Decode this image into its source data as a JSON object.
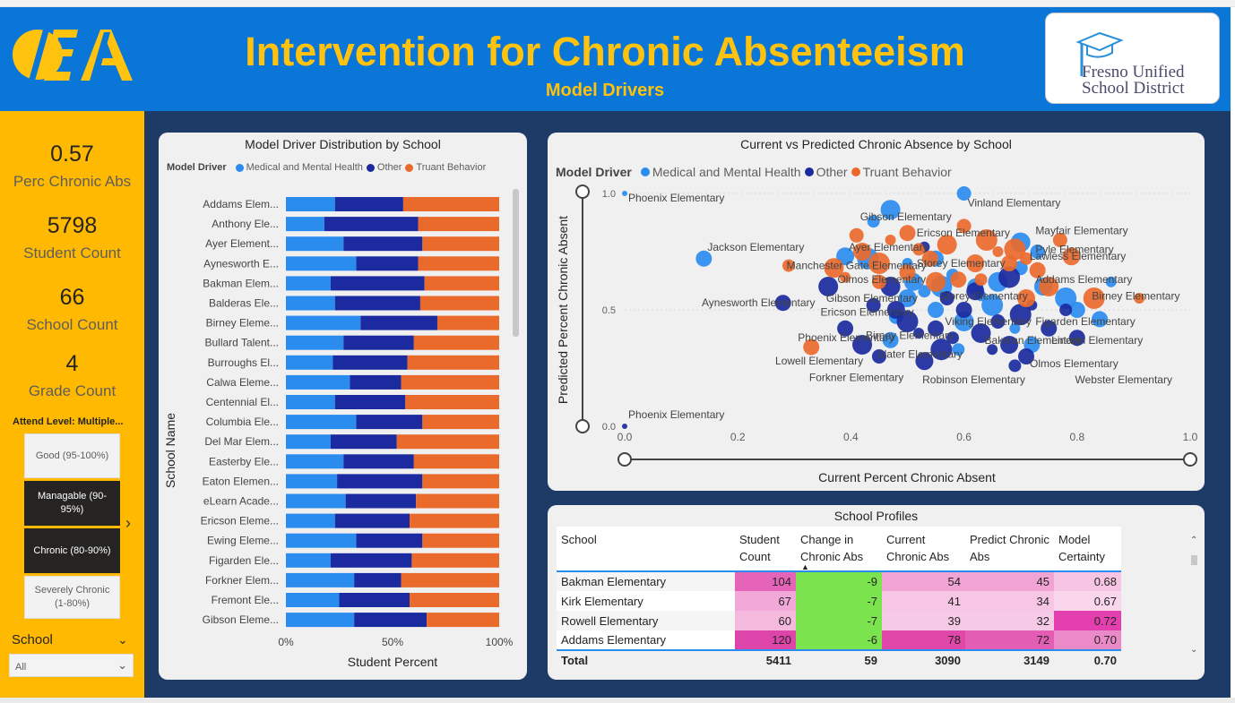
{
  "header": {
    "title": "Intervention for Chronic Absenteeism",
    "subtitle": "Model Drivers",
    "logo_text": "OEA",
    "district_logo": {
      "line1": "Fresno Unified",
      "line2": "School District"
    }
  },
  "colors": {
    "header_bg": "#0a76d8",
    "title": "#ffc20e",
    "sidebar_bg": "#ffb900",
    "canvas_bg": "#1e3a66",
    "medical": "#2b8cf0",
    "other": "#1b2a9e",
    "truant": "#ea6a2c"
  },
  "kpis": [
    {
      "value": "0.57",
      "label": "Perc Chronic Abs"
    },
    {
      "value": "5798",
      "label": "Student Count"
    },
    {
      "value": "66",
      "label": "School Count"
    },
    {
      "value": "4",
      "label": "Grade Count"
    }
  ],
  "attend_slicer": {
    "title": "Attend Level: Multiple...",
    "options": [
      {
        "label": "Good (95-100%)",
        "selected": false
      },
      {
        "label": "Managable (90-95%)",
        "selected": true
      },
      {
        "label": "Chronic (80-90%)",
        "selected": true
      },
      {
        "label": "Severely Chronic (1-80%)",
        "selected": false
      }
    ]
  },
  "school_slicer": {
    "label": "School",
    "value": "All"
  },
  "chart_data": [
    {
      "type": "bar",
      "stacked": "100%",
      "orientation": "horizontal",
      "title": "Model Driver Distribution by School",
      "legend_title": "Model Driver",
      "xlabel": "Student Percent",
      "ylabel": "School Name",
      "xticks": [
        "0%",
        "50%",
        "100%"
      ],
      "categories": [
        "Addams Elem...",
        "Anthony Ele...",
        "Ayer Element...",
        "Aynesworth E...",
        "Bakman Elem...",
        "Balderas Ele...",
        "Birney Eleme...",
        "Bullard Talent...",
        "Burroughs El...",
        "Calwa Eleme...",
        "Centennial El...",
        "Columbia Ele...",
        "Del Mar Elem...",
        "Easterby Ele...",
        "Eaton Elemen...",
        "eLearn Acade...",
        "Ericson Eleme...",
        "Ewing Eleme...",
        "Figarden Ele...",
        "Forkner Elem...",
        "Fremont Ele...",
        "Gibson Eleme..."
      ],
      "series": [
        {
          "name": "Medical and Mental Health",
          "values": [
            0.23,
            0.18,
            0.27,
            0.33,
            0.21,
            0.23,
            0.35,
            0.27,
            0.22,
            0.3,
            0.23,
            0.33,
            0.21,
            0.27,
            0.24,
            0.28,
            0.23,
            0.33,
            0.21,
            0.32,
            0.25,
            0.32
          ]
        },
        {
          "name": "Other",
          "values": [
            0.32,
            0.44,
            0.37,
            0.29,
            0.44,
            0.4,
            0.36,
            0.33,
            0.35,
            0.24,
            0.33,
            0.31,
            0.31,
            0.33,
            0.4,
            0.33,
            0.35,
            0.31,
            0.38,
            0.22,
            0.33,
            0.34
          ]
        },
        {
          "name": "Truant Behavior",
          "values": [
            0.45,
            0.38,
            0.36,
            0.38,
            0.35,
            0.37,
            0.29,
            0.4,
            0.43,
            0.46,
            0.44,
            0.36,
            0.48,
            0.4,
            0.36,
            0.39,
            0.42,
            0.36,
            0.41,
            0.46,
            0.42,
            0.34
          ]
        }
      ]
    },
    {
      "type": "scatter",
      "title": "Current vs Predicted Chronic Absence by School",
      "legend_title": "Model Driver",
      "xlabel": "Current Percent Chronic Absent",
      "ylabel": "Predicted Percent Chronic Absent",
      "xlim": [
        0,
        1
      ],
      "ylim": [
        0,
        1
      ],
      "xticks": [
        "0.0",
        "0.2",
        "0.4",
        "0.6",
        "0.8",
        "1.0"
      ],
      "yticks": [
        "1.0",
        "0.5",
        "0.0"
      ],
      "labels": [
        {
          "text": "Phoenix Elementary",
          "x": 0.0,
          "y": 0.98
        },
        {
          "text": "Vinland Elementary",
          "x": 0.6,
          "y": 0.96
        },
        {
          "text": "Gibson Elementary",
          "x": 0.41,
          "y": 0.9
        },
        {
          "text": "Ericson Elementary",
          "x": 0.51,
          "y": 0.83
        },
        {
          "text": "Mayfair Elementary",
          "x": 0.72,
          "y": 0.84
        },
        {
          "text": "Jackson Elementary",
          "x": 0.14,
          "y": 0.77
        },
        {
          "text": "Ayer Elementary",
          "x": 0.39,
          "y": 0.77
        },
        {
          "text": "Pyle Elementary",
          "x": 0.72,
          "y": 0.76
        },
        {
          "text": "Lawless Elementary",
          "x": 0.88,
          "y": 0.73
        },
        {
          "text": "Manchester Gate Elementary",
          "x": 0.28,
          "y": 0.69
        },
        {
          "text": "Storey Elementary",
          "x": 0.51,
          "y": 0.7
        },
        {
          "text": "Olmos Elementary",
          "x": 0.37,
          "y": 0.63
        },
        {
          "text": "Addams Elementary",
          "x": 0.72,
          "y": 0.63
        },
        {
          "text": "Gibson Elementary",
          "x": 0.35,
          "y": 0.55
        },
        {
          "text": "Storey Elementary",
          "x": 0.55,
          "y": 0.56
        },
        {
          "text": "Birney Elementary",
          "x": 0.82,
          "y": 0.56
        },
        {
          "text": "Aynesworth Elementary",
          "x": 0.13,
          "y": 0.53
        },
        {
          "text": "Ericson Elementary",
          "x": 0.34,
          "y": 0.49
        },
        {
          "text": "Viking Elementary",
          "x": 0.56,
          "y": 0.45
        },
        {
          "text": "Figarden Elementary",
          "x": 0.72,
          "y": 0.45
        },
        {
          "text": "Phoenix Elementary",
          "x": 0.3,
          "y": 0.38
        },
        {
          "text": "Birney Elementary",
          "x": 0.42,
          "y": 0.39
        },
        {
          "text": "Bakman Elementary",
          "x": 0.63,
          "y": 0.37
        },
        {
          "text": "Lincoln Elementary",
          "x": 0.91,
          "y": 0.37
        },
        {
          "text": "Slater Elementary",
          "x": 0.44,
          "y": 0.31
        },
        {
          "text": "Lowell Elementary",
          "x": 0.26,
          "y": 0.28
        },
        {
          "text": "Olmos Elementary",
          "x": 0.71,
          "y": 0.27
        },
        {
          "text": "Forkner Elementary",
          "x": 0.32,
          "y": 0.21
        },
        {
          "text": "Robinson Elementary",
          "x": 0.52,
          "y": 0.2
        },
        {
          "text": "Webster Elementary",
          "x": 0.79,
          "y": 0.2
        },
        {
          "text": "Phoenix Elementary",
          "x": 0.0,
          "y": 0.05
        }
      ],
      "series": [
        {
          "name": "Medical and Mental Health",
          "points": [
            [
              0.0,
              1.0
            ],
            [
              0.14,
              0.72
            ],
            [
              0.47,
              0.93
            ],
            [
              0.6,
              1.0
            ],
            [
              0.39,
              0.73
            ],
            [
              0.43,
              0.72
            ],
            [
              0.5,
              0.7
            ],
            [
              0.55,
              0.72
            ],
            [
              0.58,
              0.65
            ],
            [
              0.62,
              0.6
            ],
            [
              0.66,
              0.62
            ],
            [
              0.7,
              0.68
            ],
            [
              0.74,
              0.6
            ],
            [
              0.78,
              0.55
            ],
            [
              0.86,
              0.62
            ],
            [
              0.8,
              0.5
            ],
            [
              0.53,
              0.58
            ],
            [
              0.55,
              0.5
            ],
            [
              0.6,
              0.45
            ],
            [
              0.48,
              0.47
            ],
            [
              0.5,
              0.55
            ],
            [
              0.65,
              0.52
            ],
            [
              0.69,
              0.42
            ],
            [
              0.72,
              0.35
            ],
            [
              0.59,
              0.33
            ],
            [
              0.47,
              0.37
            ],
            [
              0.7,
              0.79
            ],
            [
              0.73,
              0.75
            ],
            [
              0.51,
              0.62
            ],
            [
              0.56,
              0.6
            ],
            [
              0.63,
              0.56
            ],
            [
              0.84,
              0.46
            ],
            [
              0.44,
              0.88
            ]
          ]
        },
        {
          "name": "Other",
          "points": [
            [
              0.0,
              0.0
            ],
            [
              0.28,
              0.53
            ],
            [
              0.36,
              0.6
            ],
            [
              0.44,
              0.52
            ],
            [
              0.48,
              0.5
            ],
            [
              0.5,
              0.45
            ],
            [
              0.52,
              0.4
            ],
            [
              0.55,
              0.42
            ],
            [
              0.58,
              0.38
            ],
            [
              0.6,
              0.5
            ],
            [
              0.63,
              0.4
            ],
            [
              0.66,
              0.45
            ],
            [
              0.68,
              0.35
            ],
            [
              0.7,
              0.48
            ],
            [
              0.72,
              0.52
            ],
            [
              0.75,
              0.42
            ],
            [
              0.78,
              0.5
            ],
            [
              0.8,
              0.38
            ],
            [
              0.42,
              0.35
            ],
            [
              0.45,
              0.3
            ],
            [
              0.53,
              0.28
            ],
            [
              0.56,
              0.33
            ],
            [
              0.65,
              0.33
            ],
            [
              0.71,
              0.3
            ],
            [
              0.69,
              0.26
            ],
            [
              0.39,
              0.42
            ],
            [
              0.47,
              0.6
            ],
            [
              0.57,
              0.55
            ],
            [
              0.62,
              0.58
            ],
            [
              0.68,
              0.64
            ],
            [
              0.53,
              0.77
            ]
          ]
        },
        {
          "name": "Truant Behavior",
          "points": [
            [
              0.29,
              0.69
            ],
            [
              0.33,
              0.34
            ],
            [
              0.37,
              0.68
            ],
            [
              0.41,
              0.82
            ],
            [
              0.42,
              0.75
            ],
            [
              0.45,
              0.7
            ],
            [
              0.47,
              0.8
            ],
            [
              0.5,
              0.83
            ],
            [
              0.52,
              0.76
            ],
            [
              0.54,
              0.72
            ],
            [
              0.57,
              0.78
            ],
            [
              0.6,
              0.86
            ],
            [
              0.62,
              0.7
            ],
            [
              0.64,
              0.8
            ],
            [
              0.66,
              0.75
            ],
            [
              0.68,
              0.7
            ],
            [
              0.71,
              0.72
            ],
            [
              0.73,
              0.67
            ],
            [
              0.75,
              0.6
            ],
            [
              0.77,
              0.8
            ],
            [
              0.79,
              0.73
            ],
            [
              0.83,
              0.55
            ],
            [
              0.91,
              0.55
            ],
            [
              0.59,
              0.63
            ],
            [
              0.63,
              0.63
            ],
            [
              0.5,
              0.66
            ],
            [
              0.55,
              0.62
            ],
            [
              0.45,
              0.62
            ],
            [
              0.71,
              0.55
            ],
            [
              0.69,
              0.76
            ],
            [
              0.39,
              0.64
            ]
          ]
        }
      ]
    }
  ],
  "table": {
    "title": "School Profiles",
    "columns": [
      "School",
      "Student Count",
      "Change in Chronic Abs",
      "Current Chronic Abs",
      "Predict Chronic Abs",
      "Model Certainty"
    ],
    "rows": [
      {
        "school": "Bakman Elementary",
        "students": "104",
        "change": "-9",
        "current": "54",
        "predict": "45",
        "certainty": "0.68"
      },
      {
        "school": "Kirk Elementary",
        "students": "67",
        "change": "-7",
        "current": "41",
        "predict": "34",
        "certainty": "0.67"
      },
      {
        "school": "Rowell Elementary",
        "students": "60",
        "change": "-7",
        "current": "39",
        "predict": "32",
        "certainty": "0.72"
      },
      {
        "school": "Addams Elementary",
        "students": "120",
        "change": "-6",
        "current": "78",
        "predict": "72",
        "certainty": "0.70"
      }
    ],
    "total": {
      "label": "Total",
      "students": "5411",
      "change": "59",
      "current": "3090",
      "predict": "3149",
      "certainty": "0.70"
    }
  }
}
